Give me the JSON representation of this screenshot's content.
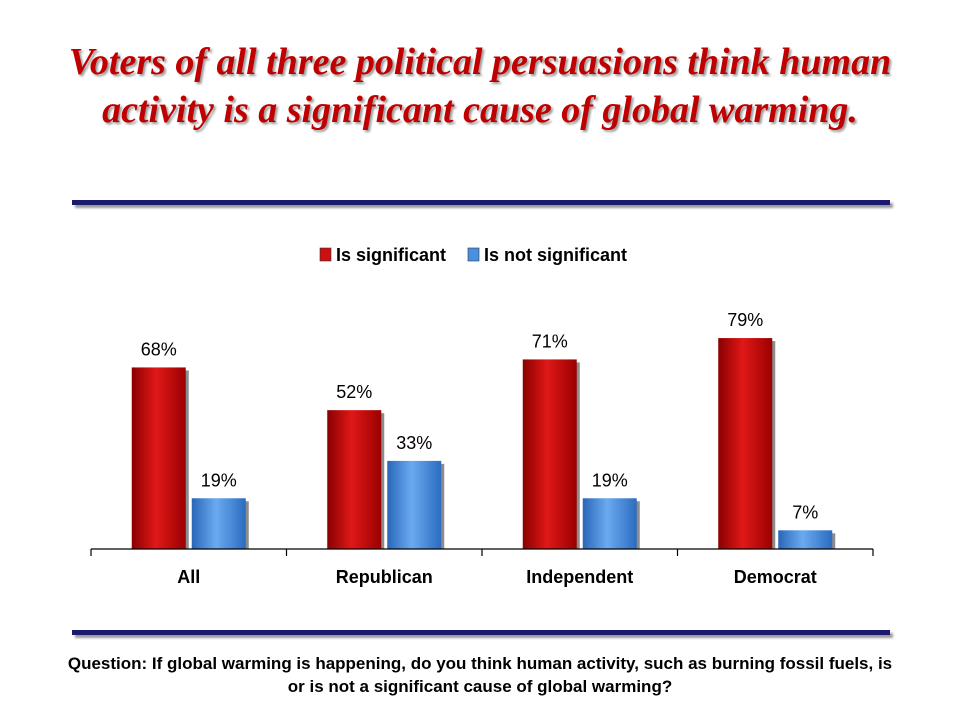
{
  "title": "Voters of all three political persuasions think human activity is a significant cause of global warming.",
  "question": "Question: If global warming is happening, do you think human activity, such as burning fossil fuels, is or is not a significant cause of global warming?",
  "colors": {
    "title": "#c00000",
    "rule": "#1a1a6e",
    "series": [
      "#cc1010",
      "#4a90e2"
    ]
  },
  "chart_data": {
    "type": "bar",
    "categories": [
      "All",
      "Republican",
      "Independent",
      "Democrat"
    ],
    "series": [
      {
        "name": "Is significant",
        "values": [
          68,
          52,
          71,
          79
        ]
      },
      {
        "name": "Is not significant",
        "values": [
          19,
          33,
          19,
          7
        ]
      }
    ],
    "data_labels": [
      [
        "68%",
        "52%",
        "71%",
        "79%"
      ],
      [
        "19%",
        "33%",
        "19%",
        "7%"
      ]
    ],
    "ylim": [
      0,
      90
    ],
    "grid": false,
    "legend_position": "top",
    "xlabel": "",
    "ylabel": ""
  }
}
